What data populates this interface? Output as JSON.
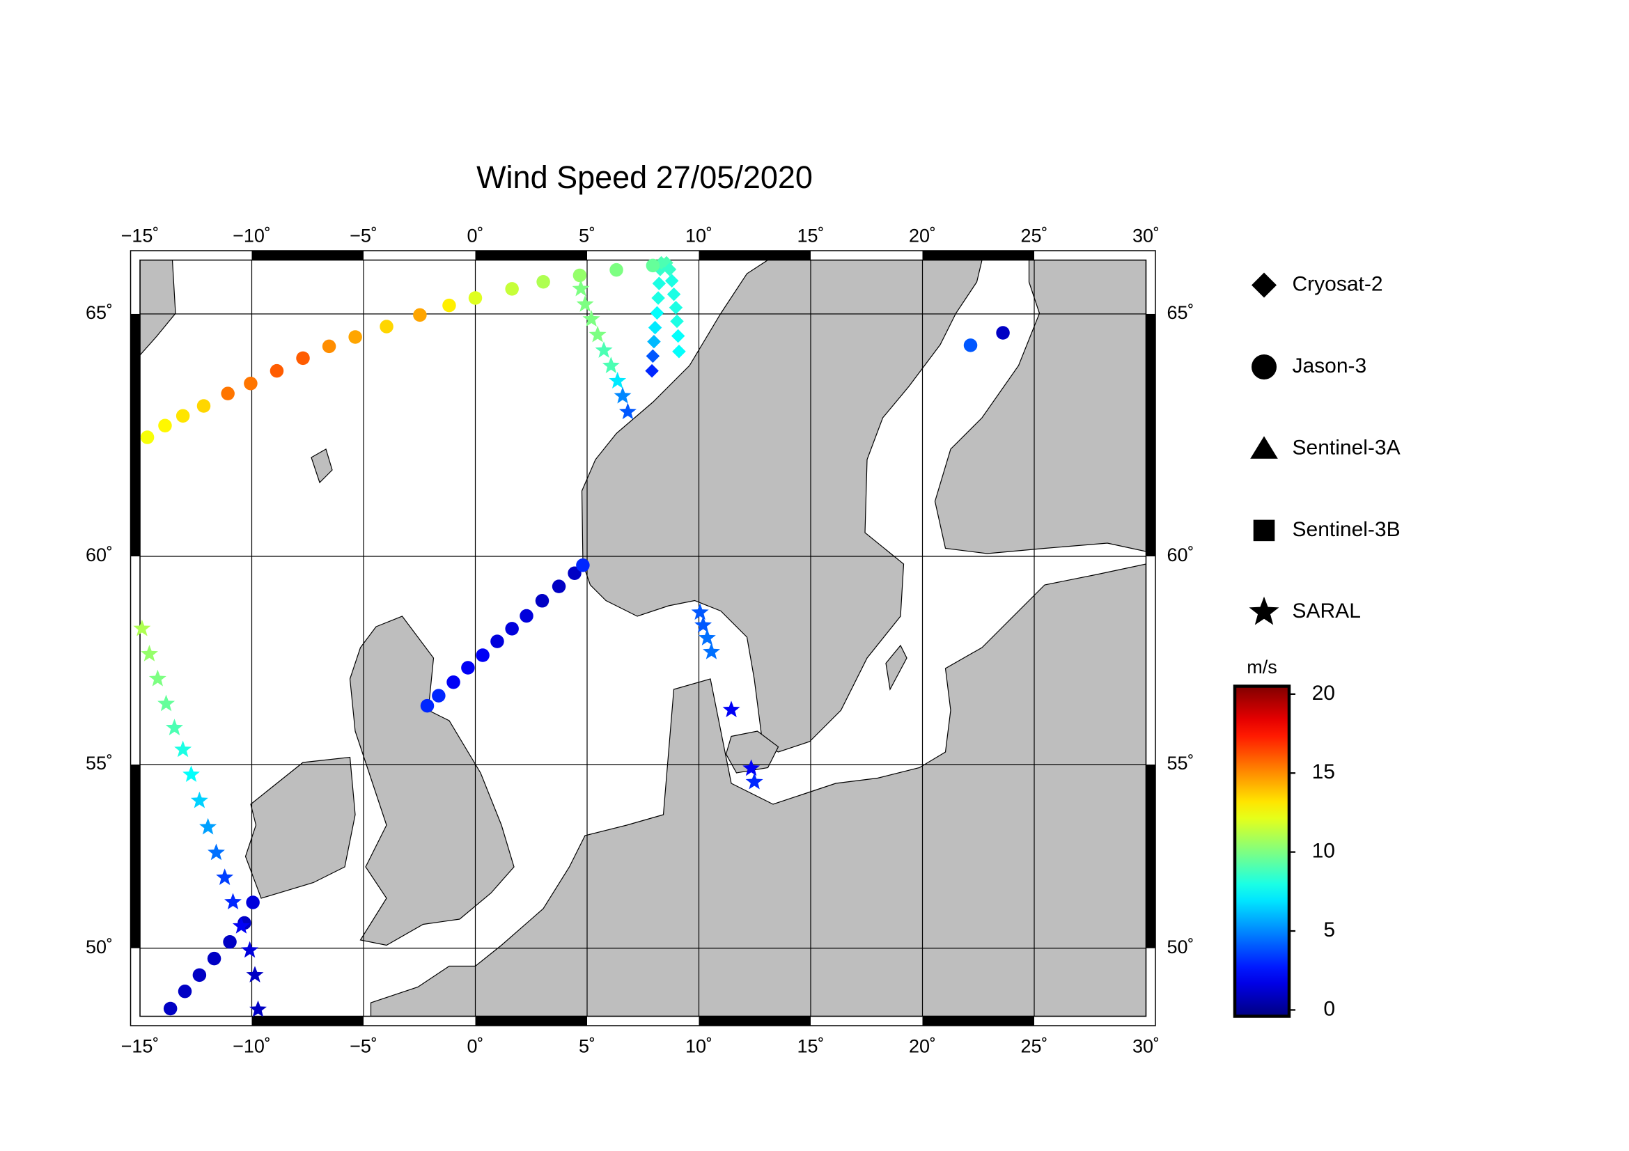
{
  "chart_data": {
    "type": "scatter",
    "title": "Wind Speed 27/05/2020",
    "projection": "mercator",
    "xlim": [
      -15,
      30
    ],
    "ylim": [
      48,
      66
    ],
    "xticks": [
      {
        "value": -15,
        "label": "−15˚"
      },
      {
        "value": -10,
        "label": "−10˚"
      },
      {
        "value": -5,
        "label": "−5˚"
      },
      {
        "value": 0,
        "label": "0˚"
      },
      {
        "value": 5,
        "label": "5˚"
      },
      {
        "value": 10,
        "label": "10˚"
      },
      {
        "value": 15,
        "label": "15˚"
      },
      {
        "value": 20,
        "label": "20˚"
      },
      {
        "value": 25,
        "label": "25˚"
      },
      {
        "value": 30,
        "label": "30˚"
      }
    ],
    "yticks": [
      {
        "value": 50,
        "label": "50˚"
      },
      {
        "value": 55,
        "label": "55˚"
      },
      {
        "value": 60,
        "label": "60˚"
      },
      {
        "value": 65,
        "label": "65˚"
      }
    ],
    "grid": true,
    "colormap": "jet",
    "colorbar_label": "m/s",
    "clim": [
      -0.4,
      20.5
    ],
    "cticks": [
      0,
      5,
      10,
      15,
      20
    ],
    "series": [
      {
        "name": "Cryosat-2",
        "marker": "diamond",
        "x": [
          7.9,
          7.94,
          7.99,
          8.04,
          8.13,
          8.18,
          8.22,
          8.27,
          8.32,
          8.55,
          8.69,
          8.79,
          8.88,
          8.97,
          9.02,
          9.07,
          9.11
        ],
        "y": [
          63.9,
          64.19,
          64.47,
          64.74,
          65.02,
          65.3,
          65.57,
          65.83,
          65.95,
          65.95,
          65.83,
          65.62,
          65.37,
          65.12,
          64.86,
          64.58,
          64.28
        ],
        "values": [
          3,
          4,
          6,
          7,
          7.5,
          8,
          8,
          8.5,
          9,
          9,
          8.5,
          8,
          8,
          8,
          8,
          7.5,
          7.5
        ]
      },
      {
        "name": "Jason-3",
        "marker": "circle",
        "x": [
          -14.67,
          -13.88,
          -13.08,
          -12.15,
          -11.07,
          -10.05,
          -8.88,
          -7.71,
          -6.54,
          -5.37,
          -3.97,
          -2.48,
          -1.17,
          0,
          1.64,
          3.04,
          4.67,
          6.31,
          7.94,
          -13.64,
          -12.99,
          -12.34,
          -11.68,
          -10.98,
          -10.33,
          -9.95,
          -2.15,
          -1.64,
          -0.98,
          -0.33,
          0.33,
          0.98,
          1.64,
          2.29,
          2.99,
          3.74,
          4.44,
          4.81,
          22.15,
          23.6
        ],
        "y": [
          62.56,
          62.8,
          63.0,
          63.2,
          63.45,
          63.65,
          63.9,
          64.15,
          64.38,
          64.56,
          64.76,
          64.98,
          65.16,
          65.3,
          65.47,
          65.6,
          65.72,
          65.82,
          65.9,
          48.23,
          48.74,
          49.22,
          49.7,
          50.18,
          50.72,
          51.3,
          56.48,
          56.73,
          57.06,
          57.41,
          57.71,
          58.04,
          58.34,
          58.64,
          58.99,
          59.32,
          59.62,
          59.8,
          64.4,
          64.64
        ],
        "values": [
          12.5,
          12.8,
          13.2,
          13.5,
          15.5,
          15.5,
          16,
          16,
          15,
          14.5,
          13.5,
          14.5,
          13,
          12,
          11.5,
          11,
          10.5,
          10,
          9.5,
          1,
          1,
          1,
          1,
          1,
          1,
          1.5,
          3,
          3,
          2,
          2,
          2,
          1.5,
          1.5,
          1.5,
          1,
          1,
          1,
          3,
          4,
          1
        ]
      },
      {
        "name": "Sentinel-3A",
        "marker": "triangle",
        "x": [],
        "y": [],
        "values": []
      },
      {
        "name": "Sentinel-3B",
        "marker": "square",
        "x": [],
        "y": [],
        "values": []
      },
      {
        "name": "SARAL",
        "marker": "star",
        "x": [
          4.72,
          4.91,
          5.19,
          5.47,
          5.75,
          6.07,
          6.36,
          6.59,
          6.82,
          -14.91,
          -14.58,
          -14.21,
          -13.83,
          -13.46,
          -13.08,
          -12.71,
          -12.34,
          -11.96,
          -11.59,
          -11.21,
          -10.84,
          -10.47,
          -10.09,
          -9.86,
          -9.72,
          10.05,
          10.19,
          10.37,
          10.56,
          11.45,
          12.34,
          12.48
        ],
        "y": [
          65.47,
          65.18,
          64.9,
          64.6,
          64.3,
          64.0,
          63.7,
          63.4,
          63.08,
          58.34,
          57.74,
          57.14,
          56.53,
          55.93,
          55.38,
          54.74,
          54.06,
          53.36,
          52.67,
          51.99,
          51.31,
          50.63,
          49.94,
          49.22,
          48.2,
          58.72,
          58.42,
          58.12,
          57.79,
          56.38,
          54.9,
          54.55
        ],
        "values": [
          10,
          10,
          10,
          10,
          9,
          9,
          7,
          5,
          4,
          11,
          10.5,
          10,
          9.5,
          9,
          8,
          7.5,
          6.5,
          5.5,
          4.5,
          3.5,
          3,
          2,
          1.5,
          1,
          1,
          4,
          4,
          4.5,
          4.5,
          2,
          2,
          3
        ]
      }
    ]
  }
}
